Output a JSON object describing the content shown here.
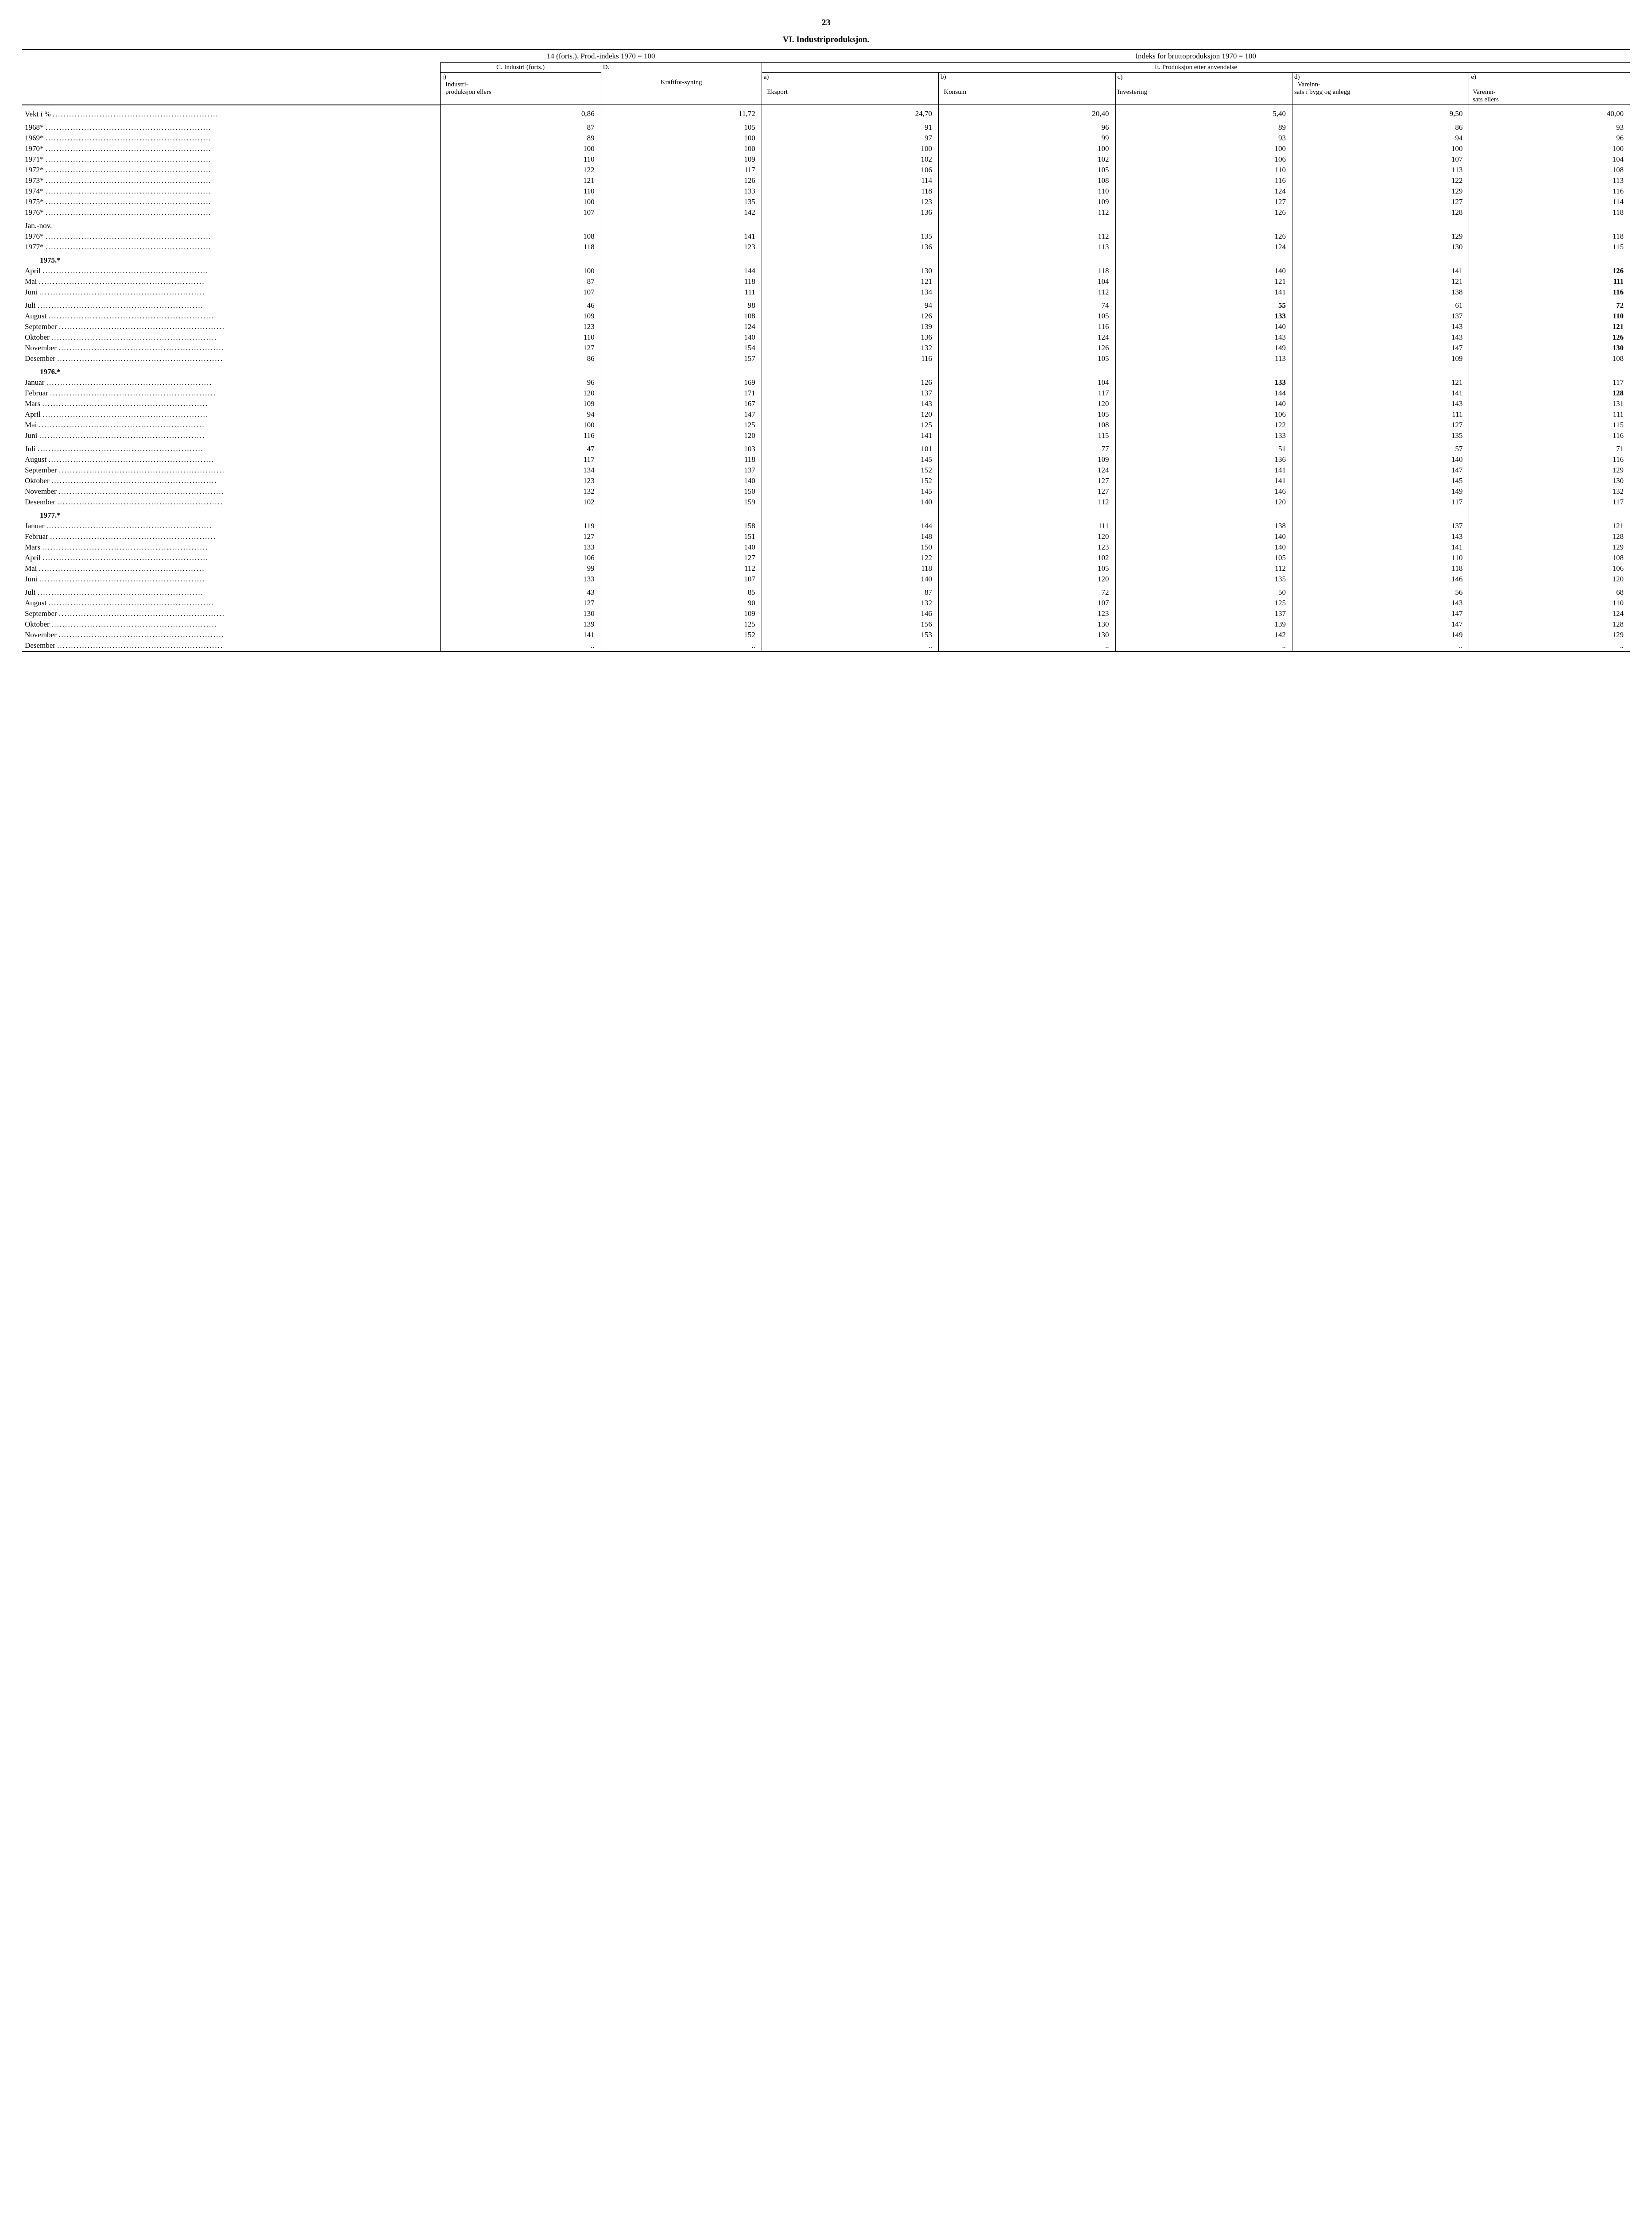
{
  "page_number": "23",
  "title": "VI. Industriproduksjon.",
  "header": {
    "group1": "14 (forts.). Prod.-indeks 1970 = 100",
    "group2": "Indeks for bruttoproduksjon 1970 = 100",
    "sub1": "C. Industri (forts.)",
    "sub2": "D.",
    "sub_e": "E. Produksjon etter anvendelse",
    "col_j_top": "j)",
    "col_j": "Industri-produksjon ellers",
    "col_d": "Kraftfor-syning",
    "col_a_top": "a)",
    "col_a": "Eksport",
    "col_b_top": "b)",
    "col_b": "Konsum",
    "col_c_top": "c)",
    "col_c": "Investering",
    "col_dd_top": "d)",
    "col_dd": "Vareinn-sats i bygg og anlegg",
    "col_e_top": "e)",
    "col_e": "Vareinn-sats ellers"
  },
  "rows": [
    {
      "label": "Vekt i %",
      "dots": true,
      "vals": [
        "0,86",
        "11,72",
        "24,70",
        "20,40",
        "5,40",
        "9,50",
        "40,00"
      ],
      "pad_top": true,
      "pad_bot": true
    },
    {
      "label": "1968*",
      "dots": true,
      "vals": [
        "87",
        "105",
        "91",
        "96",
        "89",
        "86",
        "93"
      ]
    },
    {
      "label": "1969*",
      "dots": true,
      "vals": [
        "89",
        "100",
        "97",
        "99",
        "93",
        "94",
        "96"
      ]
    },
    {
      "label": "1970*",
      "dots": true,
      "vals": [
        "100",
        "100",
        "100",
        "100",
        "100",
        "100",
        "100"
      ]
    },
    {
      "label": "1971*",
      "dots": true,
      "vals": [
        "110",
        "109",
        "102",
        "102",
        "106",
        "107",
        "104"
      ]
    },
    {
      "label": "1972*",
      "dots": true,
      "vals": [
        "122",
        "117",
        "106",
        "105",
        "110",
        "113",
        "108"
      ]
    },
    {
      "label": "1973*",
      "dots": true,
      "vals": [
        "121",
        "126",
        "114",
        "108",
        "116",
        "122",
        "113"
      ]
    },
    {
      "label": "1974*",
      "dots": true,
      "vals": [
        "110",
        "133",
        "118",
        "110",
        "124",
        "129",
        "116"
      ]
    },
    {
      "label": "1975*",
      "dots": true,
      "vals": [
        "100",
        "135",
        "123",
        "109",
        "127",
        "127",
        "114"
      ]
    },
    {
      "label": "1976*",
      "dots": true,
      "vals": [
        "107",
        "142",
        "136",
        "112",
        "126",
        "128",
        "118"
      ],
      "pad_bot": true
    },
    {
      "label": "Jan.-nov.",
      "dots": false,
      "vals": [
        "",
        "",
        "",
        "",
        "",
        "",
        ""
      ]
    },
    {
      "label": "1976*",
      "dots": true,
      "vals": [
        "108",
        "141",
        "135",
        "112",
        "126",
        "129",
        "118"
      ]
    },
    {
      "label": "1977*",
      "dots": true,
      "vals": [
        "118",
        "123",
        "136",
        "113",
        "124",
        "130",
        "115"
      ],
      "pad_bot": true
    },
    {
      "label": "1975.*",
      "section": true,
      "vals": [
        "",
        "",
        "",
        "",
        "",
        "",
        ""
      ]
    },
    {
      "label": "April",
      "dots": true,
      "vals": [
        "100",
        "144",
        "130",
        "118",
        "140",
        "141",
        "126"
      ],
      "bold_last": true
    },
    {
      "label": "Mai",
      "dots": true,
      "vals": [
        "87",
        "118",
        "121",
        "104",
        "121",
        "121",
        "111"
      ],
      "bold_last": true
    },
    {
      "label": "Juni",
      "dots": true,
      "vals": [
        "107",
        "111",
        "134",
        "112",
        "141",
        "138",
        "116"
      ],
      "bold_last": true,
      "pad_bot": true
    },
    {
      "label": "Juli",
      "dots": true,
      "vals": [
        "46",
        "98",
        "94",
        "74",
        "55",
        "61",
        "72"
      ],
      "bold5": true,
      "bold_last": true
    },
    {
      "label": "August",
      "dots": true,
      "vals": [
        "109",
        "108",
        "126",
        "105",
        "133",
        "137",
        "110"
      ],
      "bold5": true,
      "bold_last": true
    },
    {
      "label": "September",
      "dots": true,
      "vals": [
        "123",
        "124",
        "139",
        "116",
        "140",
        "143",
        "121"
      ],
      "bold_last": true
    },
    {
      "label": "Oktober",
      "dots": true,
      "vals": [
        "110",
        "140",
        "136",
        "124",
        "143",
        "143",
        "126"
      ],
      "bold_last": true
    },
    {
      "label": "November",
      "dots": true,
      "vals": [
        "127",
        "154",
        "132",
        "126",
        "149",
        "147",
        "130"
      ],
      "bold_last": true
    },
    {
      "label": "Desember",
      "dots": true,
      "vals": [
        "86",
        "157",
        "116",
        "105",
        "113",
        "109",
        "108"
      ],
      "pad_bot": true
    },
    {
      "label": "1976.*",
      "section": true,
      "vals": [
        "",
        "",
        "",
        "",
        "",
        "",
        ""
      ]
    },
    {
      "label": "Januar",
      "dots": true,
      "vals": [
        "96",
        "169",
        "126",
        "104",
        "133",
        "121",
        "117"
      ],
      "bold5": true
    },
    {
      "label": "Februar",
      "dots": true,
      "vals": [
        "120",
        "171",
        "137",
        "117",
        "144",
        "141",
        "128"
      ],
      "bold_last": true
    },
    {
      "label": "Mars",
      "dots": true,
      "vals": [
        "109",
        "167",
        "143",
        "120",
        "140",
        "143",
        "131"
      ]
    },
    {
      "label": "April",
      "dots": true,
      "vals": [
        "94",
        "147",
        "120",
        "105",
        "106",
        "111",
        "111"
      ]
    },
    {
      "label": "Mai",
      "dots": true,
      "vals": [
        "100",
        "125",
        "125",
        "108",
        "122",
        "127",
        "115"
      ]
    },
    {
      "label": "Juni",
      "dots": true,
      "vals": [
        "116",
        "120",
        "141",
        "115",
        "133",
        "135",
        "116"
      ],
      "pad_bot": true
    },
    {
      "label": "Juli",
      "dots": true,
      "vals": [
        "47",
        "103",
        "101",
        "77",
        "51",
        "57",
        "71"
      ]
    },
    {
      "label": "August",
      "dots": true,
      "vals": [
        "117",
        "118",
        "145",
        "109",
        "136",
        "140",
        "116"
      ]
    },
    {
      "label": "September",
      "dots": true,
      "vals": [
        "134",
        "137",
        "152",
        "124",
        "141",
        "147",
        "129"
      ]
    },
    {
      "label": "Oktober",
      "dots": true,
      "vals": [
        "123",
        "140",
        "152",
        "127",
        "141",
        "145",
        "130"
      ]
    },
    {
      "label": "November",
      "dots": true,
      "vals": [
        "132",
        "150",
        "145",
        "127",
        "146",
        "149",
        "132"
      ]
    },
    {
      "label": "Desember",
      "dots": true,
      "vals": [
        "102",
        "159",
        "140",
        "112",
        "120",
        "117",
        "117"
      ],
      "pad_bot": true
    },
    {
      "label": "1977.*",
      "section": true,
      "vals": [
        "",
        "",
        "",
        "",
        "",
        "",
        ""
      ]
    },
    {
      "label": "Januar",
      "dots": true,
      "vals": [
        "119",
        "158",
        "144",
        "111",
        "138",
        "137",
        "121"
      ]
    },
    {
      "label": "Februar",
      "dots": true,
      "vals": [
        "127",
        "151",
        "148",
        "120",
        "140",
        "143",
        "128"
      ]
    },
    {
      "label": "Mars",
      "dots": true,
      "vals": [
        "133",
        "140",
        "150",
        "123",
        "140",
        "141",
        "129"
      ]
    },
    {
      "label": "April",
      "dots": true,
      "vals": [
        "106",
        "127",
        "122",
        "102",
        "105",
        "110",
        "108"
      ]
    },
    {
      "label": "Mai",
      "dots": true,
      "vals": [
        "99",
        "112",
        "118",
        "105",
        "112",
        "118",
        "106"
      ]
    },
    {
      "label": "Juni",
      "dots": true,
      "vals": [
        "133",
        "107",
        "140",
        "120",
        "135",
        "146",
        "120"
      ],
      "pad_bot": true
    },
    {
      "label": "Juli",
      "dots": true,
      "vals": [
        "43",
        "85",
        "87",
        "72",
        "50",
        "56",
        "68"
      ]
    },
    {
      "label": "August",
      "dots": true,
      "vals": [
        "127",
        "90",
        "132",
        "107",
        "125",
        "143",
        "110"
      ]
    },
    {
      "label": "September",
      "dots": true,
      "vals": [
        "130",
        "109",
        "146",
        "123",
        "137",
        "147",
        "124"
      ]
    },
    {
      "label": "Oktober",
      "dots": true,
      "vals": [
        "139",
        "125",
        "156",
        "130",
        "139",
        "147",
        "128"
      ]
    },
    {
      "label": "November",
      "dots": true,
      "vals": [
        "141",
        "152",
        "153",
        "130",
        "142",
        "149",
        "129"
      ]
    },
    {
      "label": "Desember",
      "dots": true,
      "vals": [
        "..",
        "..",
        "..",
        "..",
        "..",
        "..",
        ".."
      ]
    }
  ],
  "colwidths": [
    "26%",
    "10%",
    "10%",
    "11%",
    "11%",
    "11%",
    "11%",
    "10%"
  ]
}
